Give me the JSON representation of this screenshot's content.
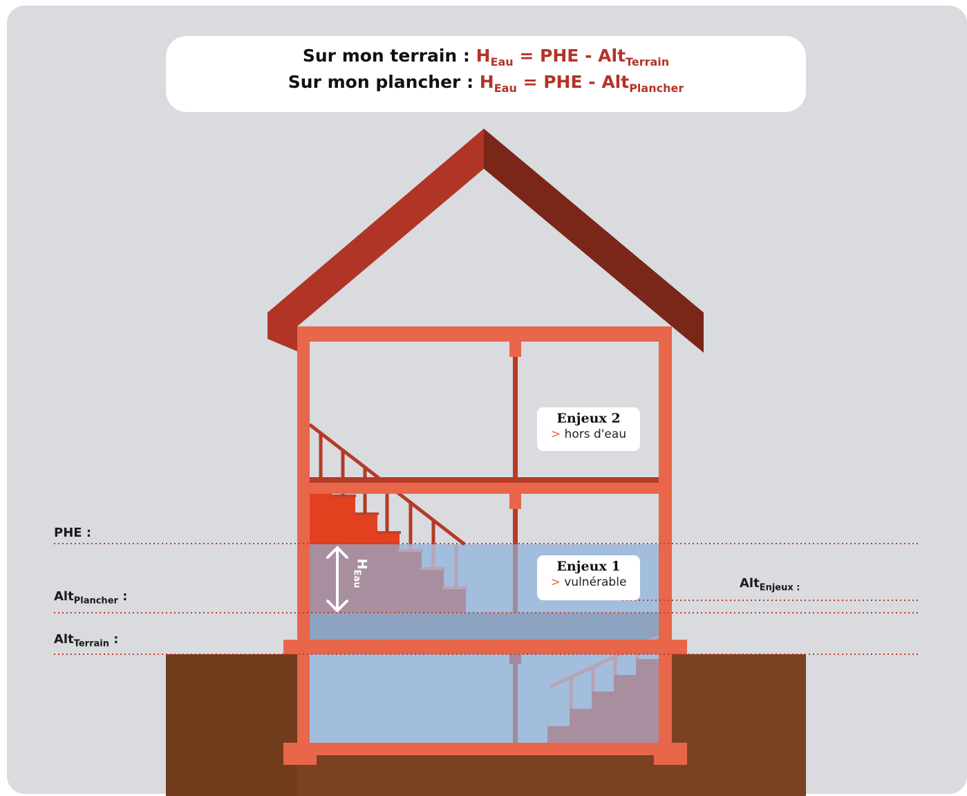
{
  "formula": {
    "line1": {
      "prefix": "Sur mon terrain : ",
      "h": "H",
      "h_sub": "Eau",
      "eq": " = PHE - Alt",
      "alt_sub": "Terrain"
    },
    "line2": {
      "prefix": "Sur mon plancher : ",
      "h": "H",
      "h_sub": "Eau",
      "eq": " = PHE - Alt",
      "alt_sub": "Plancher"
    }
  },
  "levels": {
    "phe": "PHE :",
    "alt_plancher": {
      "base": "Alt",
      "sub": "Plancher",
      "suffix": " :"
    },
    "alt_terrain": {
      "base": "Alt",
      "sub": "Terrain",
      "suffix": " :"
    },
    "alt_enjeux": {
      "base": "Alt",
      "sub": "Enjeux :"
    }
  },
  "heau": {
    "base": "H",
    "sub": "Eau"
  },
  "enjeux": [
    {
      "title": "Enjeux 2",
      "arrow": ">",
      "status": "hors d'eau"
    },
    {
      "title": "Enjeux 1",
      "arrow": ">",
      "status": "vulnérable"
    }
  ],
  "colors": {
    "background": "#d9dbdf",
    "accent_red": "#b43328",
    "frame": "#e8664a",
    "roof_left": "#b03526",
    "roof_right": "#7a2618",
    "water": "#a3bddd",
    "ground": "#7b4123",
    "dotted_line": "#c0392b"
  }
}
